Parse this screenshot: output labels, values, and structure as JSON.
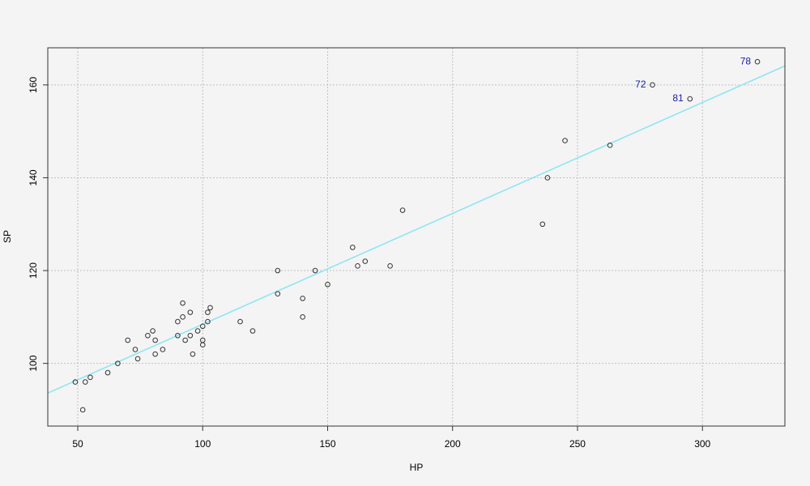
{
  "chart_data": {
    "type": "scatter",
    "title": "",
    "xlabel": "HP",
    "ylabel": "SP",
    "xlim": [
      38,
      333
    ],
    "ylim": [
      86.5,
      168
    ],
    "xticks": [
      50,
      100,
      150,
      200,
      250,
      300
    ],
    "yticks": [
      100,
      120,
      140,
      160
    ],
    "grid": true,
    "colors": {
      "fit_line": "#8ee6f2",
      "points": "#333333",
      "labels": "#1a1aa6",
      "grid": "#c0c0c0",
      "background": "#f4f4f4"
    },
    "fit_line": {
      "x": [
        38,
        333
      ],
      "y": [
        93.6,
        164.1
      ]
    },
    "points": [
      {
        "x": 49,
        "y": 96
      },
      {
        "x": 52,
        "y": 90
      },
      {
        "x": 53,
        "y": 96
      },
      {
        "x": 55,
        "y": 97
      },
      {
        "x": 62,
        "y": 98
      },
      {
        "x": 66,
        "y": 100
      },
      {
        "x": 70,
        "y": 105
      },
      {
        "x": 73,
        "y": 103
      },
      {
        "x": 74,
        "y": 101
      },
      {
        "x": 78,
        "y": 106
      },
      {
        "x": 80,
        "y": 107
      },
      {
        "x": 81,
        "y": 105
      },
      {
        "x": 81,
        "y": 102
      },
      {
        "x": 84,
        "y": 103
      },
      {
        "x": 90,
        "y": 106
      },
      {
        "x": 90,
        "y": 109
      },
      {
        "x": 92,
        "y": 110
      },
      {
        "x": 92,
        "y": 113
      },
      {
        "x": 93,
        "y": 105
      },
      {
        "x": 95,
        "y": 106
      },
      {
        "x": 95,
        "y": 111
      },
      {
        "x": 96,
        "y": 102
      },
      {
        "x": 98,
        "y": 107
      },
      {
        "x": 100,
        "y": 104
      },
      {
        "x": 100,
        "y": 105
      },
      {
        "x": 100,
        "y": 108
      },
      {
        "x": 102,
        "y": 111
      },
      {
        "x": 102,
        "y": 109
      },
      {
        "x": 103,
        "y": 112
      },
      {
        "x": 115,
        "y": 109
      },
      {
        "x": 120,
        "y": 107
      },
      {
        "x": 130,
        "y": 120
      },
      {
        "x": 130,
        "y": 115
      },
      {
        "x": 140,
        "y": 114
      },
      {
        "x": 140,
        "y": 110
      },
      {
        "x": 145,
        "y": 120
      },
      {
        "x": 150,
        "y": 117
      },
      {
        "x": 160,
        "y": 125
      },
      {
        "x": 162,
        "y": 121
      },
      {
        "x": 165,
        "y": 122
      },
      {
        "x": 175,
        "y": 121
      },
      {
        "x": 180,
        "y": 133
      },
      {
        "x": 236,
        "y": 130
      },
      {
        "x": 238,
        "y": 140
      },
      {
        "x": 245,
        "y": 148
      },
      {
        "x": 263,
        "y": 147
      },
      {
        "x": 280,
        "y": 160,
        "label": "72"
      },
      {
        "x": 295,
        "y": 157,
        "label": "81"
      },
      {
        "x": 322,
        "y": 165,
        "label": "78"
      }
    ]
  }
}
